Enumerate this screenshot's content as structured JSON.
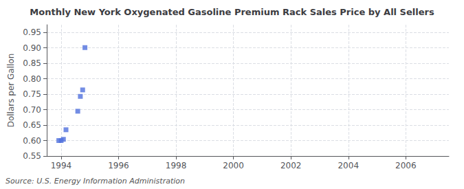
{
  "chart_data": {
    "type": "scatter",
    "title": "Monthly New York Oxygenated Gasoline Premium Rack Sales Price by All Sellers",
    "ylabel": "Dollars per Gallon",
    "source": "Source: U.S. Energy Information Administration",
    "x": [
      1993.92,
      1994.0,
      1994.08,
      1994.17,
      1994.58,
      1994.67,
      1994.75,
      1994.83
    ],
    "values": [
      0.6,
      0.6,
      0.604,
      0.635,
      0.695,
      0.743,
      0.764,
      0.901
    ],
    "marker": "square",
    "xlim": [
      1993.5,
      2007.5
    ],
    "ylim": [
      0.55,
      0.975
    ],
    "xticks": [
      1994,
      1996,
      1998,
      2000,
      2002,
      2004,
      2006
    ],
    "yticks": [
      0.55,
      {
        "value": 0.6,
        "label": "0.60"
      },
      0.65,
      {
        "value": 0.7,
        "label": "0.70"
      },
      0.75,
      {
        "value": 0.8,
        "label": "0.80"
      },
      0.85,
      {
        "value": 0.9,
        "label": "0.90"
      },
      0.95
    ],
    "grid": true
  }
}
